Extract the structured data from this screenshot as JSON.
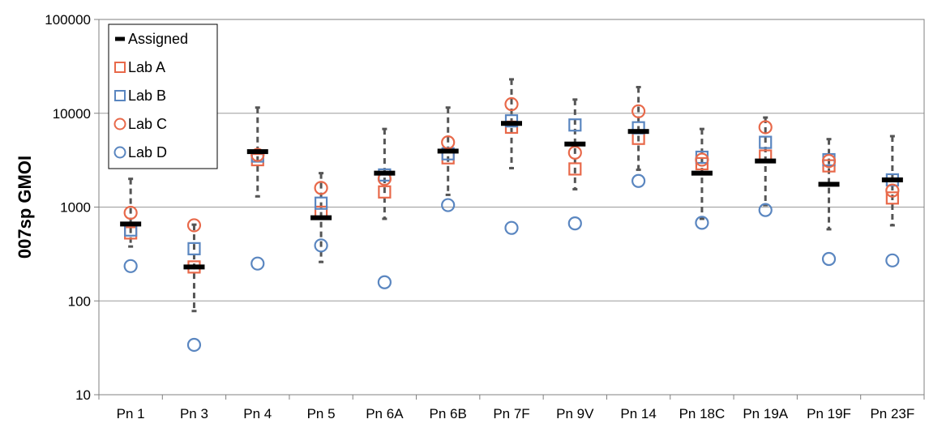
{
  "chart_data": {
    "type": "scatter",
    "title": "",
    "xlabel": "",
    "ylabel": "007sp GMOI",
    "yscale": "log",
    "ylim": [
      10,
      100000
    ],
    "yticks": [
      "10",
      "100",
      "1000",
      "10000",
      "100000"
    ],
    "grid": "horizontal",
    "legend_position": "top-left",
    "categories": [
      "Pn 1",
      "Pn 3",
      "Pn 4",
      "Pn 5",
      "Pn 6A",
      "Pn 6B",
      "Pn 7F",
      "Pn 9V",
      "Pn 14",
      "Pn 18C",
      "Pn 19A",
      "Pn 19F",
      "Pn 23F"
    ],
    "error_range": {
      "low": [
        380,
        78,
        1300,
        260,
        750,
        1350,
        2600,
        1550,
        2500,
        750,
        1050,
        580,
        640
      ],
      "high": [
        2000,
        650,
        11500,
        2300,
        6800,
        11500,
        23000,
        14000,
        19000,
        6800,
        9000,
        5300,
        5700
      ]
    },
    "series": [
      {
        "name": "Assigned",
        "marker": "dash",
        "color": "#000000",
        "values": [
          660,
          230,
          3900,
          770,
          2300,
          3950,
          7800,
          4700,
          6400,
          2300,
          3100,
          1750,
          1950
        ]
      },
      {
        "name": "Lab A",
        "marker": "square",
        "color": "#e8694a",
        "values": [
          530,
          230,
          3200,
          880,
          1450,
          3350,
          7100,
          2550,
          5400,
          2900,
          3500,
          2750,
          1250
        ]
      },
      {
        "name": "Lab B",
        "marker": "square",
        "color": "#5a86c0",
        "values": [
          570,
          360,
          3500,
          1100,
          2200,
          3700,
          8300,
          7500,
          7000,
          3400,
          4900,
          3200,
          1950
        ]
      },
      {
        "name": "Lab C",
        "marker": "circle",
        "color": "#e8694a",
        "values": [
          870,
          640,
          3600,
          1600,
          2000,
          4900,
          12500,
          3800,
          10500,
          3200,
          7100,
          3100,
          1500
        ]
      },
      {
        "name": "Lab D",
        "marker": "circle",
        "color": "#5a86c0",
        "values": [
          235,
          34,
          250,
          390,
          158,
          1050,
          600,
          670,
          1900,
          680,
          930,
          280,
          270
        ]
      }
    ]
  }
}
